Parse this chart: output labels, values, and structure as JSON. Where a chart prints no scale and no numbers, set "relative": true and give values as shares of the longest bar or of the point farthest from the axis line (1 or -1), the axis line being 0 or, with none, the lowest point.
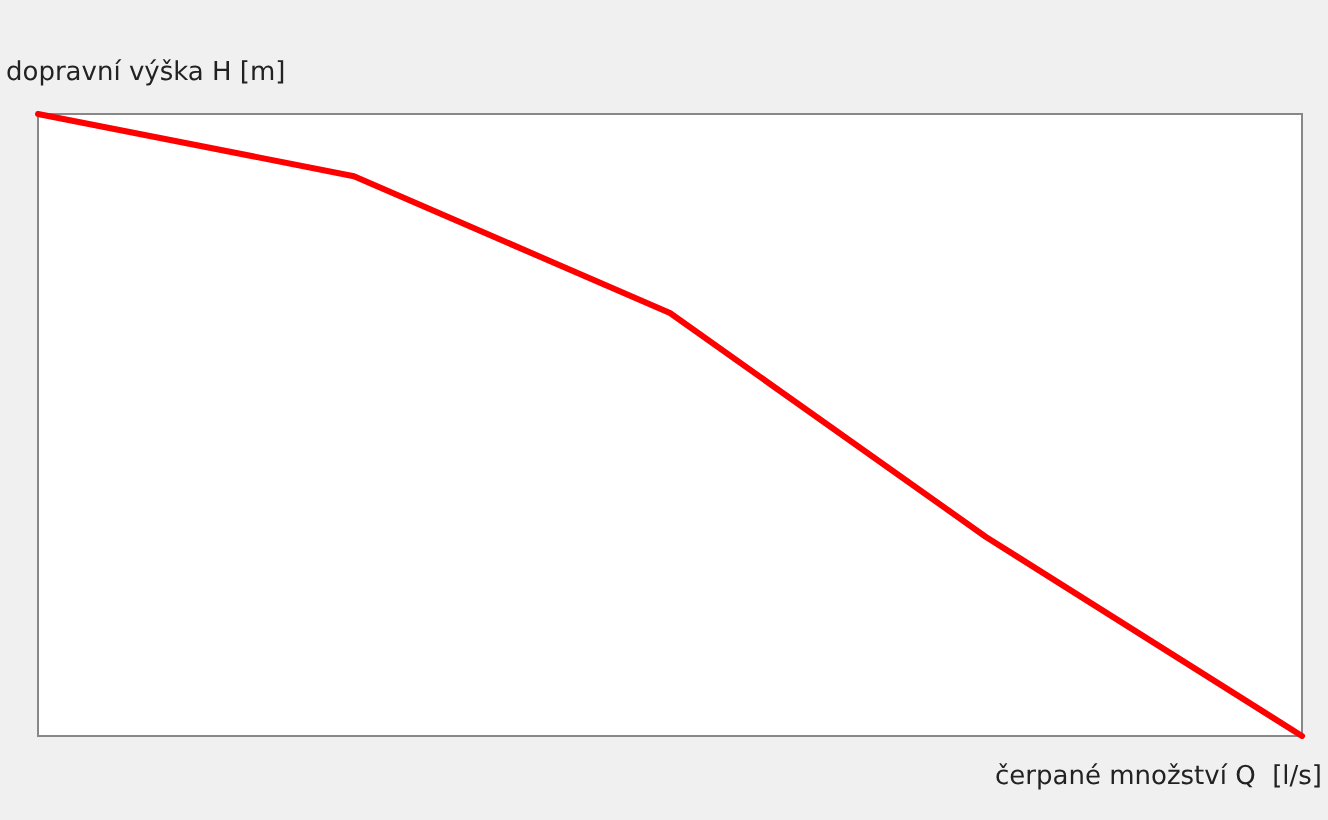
{
  "chart_data": {
    "type": "line",
    "relative": true,
    "xlabel": "čerpané množství Q  [l/s]",
    "ylabel": "dopravní výška H [m]",
    "categories": [
      null,
      null,
      null,
      null,
      null
    ],
    "series": [
      {
        "color": "#ff0000",
        "values": [
          1,
          0.9,
          0.68,
          0.32,
          0
        ]
      }
    ],
    "grid": false,
    "marker": "none",
    "line_style": "solid"
  }
}
